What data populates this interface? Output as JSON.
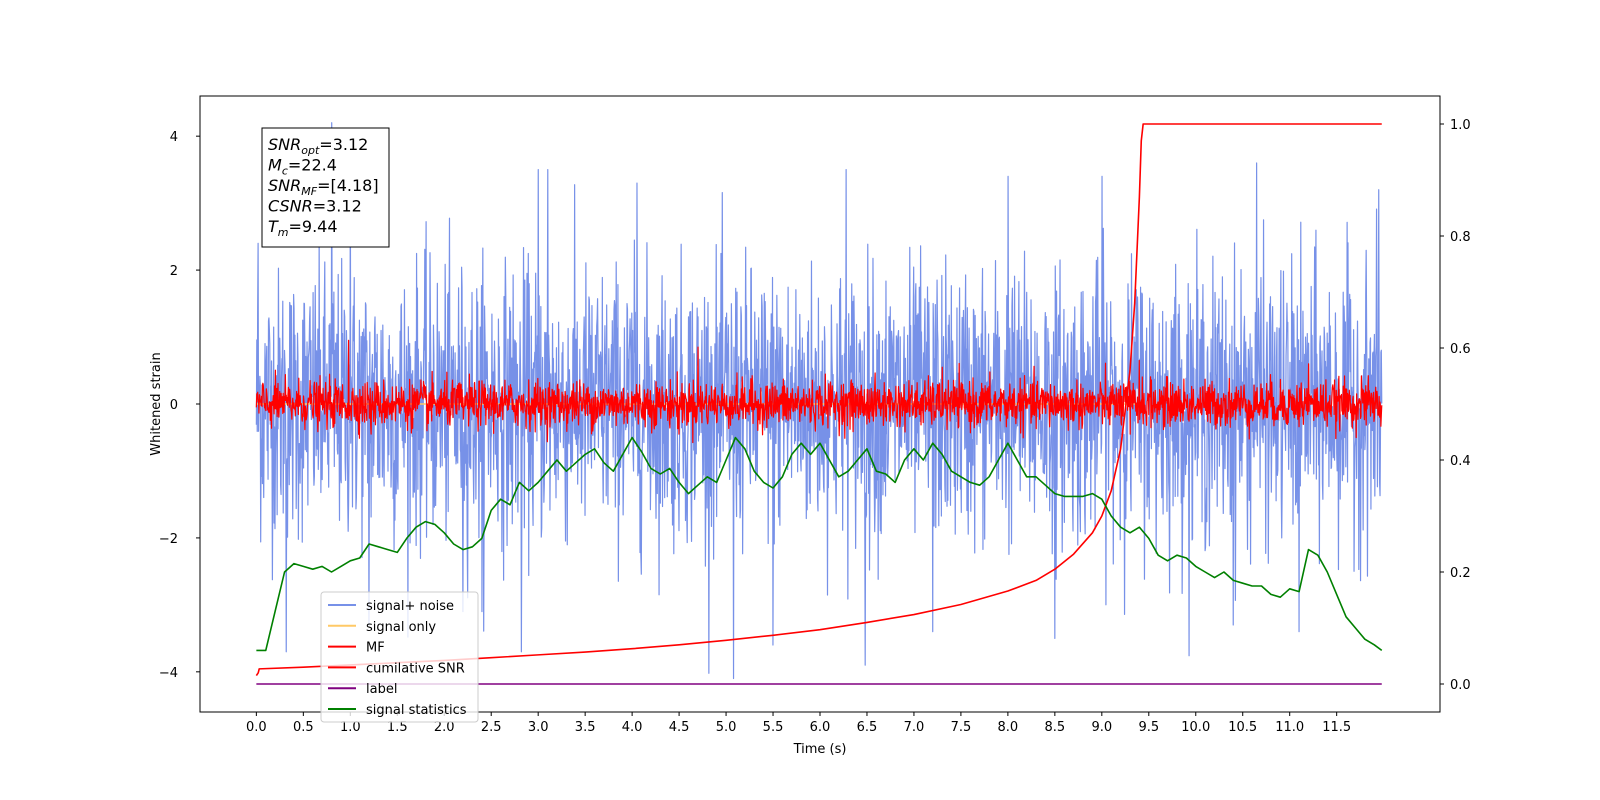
{
  "chart_data": {
    "type": "line",
    "xlabel": "Time (s)",
    "ylabel": "Whitened strain",
    "xlim": [
      -0.6,
      12.6
    ],
    "ylim": [
      -4.6,
      4.6
    ],
    "y2lim": [
      -0.05,
      1.05
    ],
    "x_ticks": [
      "0.0",
      "0.5",
      "1.0",
      "1.5",
      "2.0",
      "2.5",
      "3.0",
      "3.5",
      "4.0",
      "4.5",
      "5.0",
      "5.5",
      "6.0",
      "6.5",
      "7.0",
      "7.5",
      "8.0",
      "8.5",
      "9.0",
      "9.5",
      "10.0",
      "10.5",
      "11.0",
      "11.5"
    ],
    "x_tick_values": [
      0,
      0.5,
      1,
      1.5,
      2,
      2.5,
      3,
      3.5,
      4,
      4.5,
      5,
      5.5,
      6,
      6.5,
      7,
      7.5,
      8,
      8.5,
      9,
      9.5,
      10,
      10.5,
      11,
      11.5
    ],
    "y_ticks": [
      "−4",
      "−2",
      "0",
      "2",
      "4"
    ],
    "y_tick_values": [
      -4,
      -2,
      0,
      2,
      4
    ],
    "y2_ticks": [
      "0.0",
      "0.2",
      "0.4",
      "0.6",
      "0.8",
      "1.0"
    ],
    "y2_tick_values": [
      0,
      0.2,
      0.4,
      0.6,
      0.8,
      1.0
    ],
    "annotation": [
      {
        "sym": "SNR",
        "sub": "opt",
        "val": "=3.12"
      },
      {
        "sym": "M",
        "sub": "c",
        "val": "=22.4"
      },
      {
        "sym": "SNR",
        "sub": "MF",
        "val": "=[4.18]"
      },
      {
        "sym": "CSNR",
        "sub": "",
        "val": "=3.12"
      },
      {
        "sym": "T",
        "sub": "m",
        "val": "=9.44"
      }
    ],
    "series": [
      {
        "name": "signal+ noise",
        "color": "#7791e8",
        "axis": "left",
        "kind": "noise",
        "t_start": 0.0,
        "t_end": 11.98,
        "std": 1.0,
        "peaks": [
          [
            0.02,
            2.4
          ],
          [
            0.32,
            -3.7
          ],
          [
            0.8,
            4.2
          ],
          [
            1.0,
            3.4
          ],
          [
            1.2,
            -3.3
          ],
          [
            2.2,
            -3.1
          ],
          [
            2.4,
            -3.1
          ],
          [
            2.82,
            -3.7
          ],
          [
            3.0,
            3.5
          ],
          [
            3.1,
            3.5
          ],
          [
            4.05,
            3.3
          ],
          [
            5.08,
            -4.1
          ],
          [
            5.5,
            -3.6
          ],
          [
            6.28,
            3.5
          ],
          [
            6.48,
            -3.9
          ],
          [
            7.2,
            -3.4
          ],
          [
            8.0,
            3.4
          ],
          [
            8.5,
            -3.5
          ],
          [
            9.0,
            3.4
          ],
          [
            10.4,
            -3.3
          ],
          [
            10.65,
            3.6
          ],
          [
            11.1,
            -3.4
          ],
          [
            11.95,
            3.2
          ]
        ]
      },
      {
        "name": "signal only",
        "color": "#ffc966",
        "axis": "left",
        "kind": "flat",
        "t_start": 0.0,
        "t_end": 9.44,
        "value": 0
      },
      {
        "name": "MF",
        "color": "#ff0000",
        "axis": "left",
        "kind": "noise",
        "t_start": 0.0,
        "t_end": 11.98,
        "std": 0.17,
        "peaks": [
          [
            0.98,
            0.95
          ],
          [
            1.22,
            -0.45
          ],
          [
            4.7,
            0.85
          ],
          [
            4.5,
            -0.45
          ],
          [
            7.3,
            0.55
          ],
          [
            9.4,
            0.65
          ],
          [
            9.3,
            -0.45
          ],
          [
            11.2,
            0.6
          ]
        ]
      },
      {
        "name": "cumilative SNR",
        "color": "#ff0000",
        "axis": "right",
        "kind": "curve",
        "x": [
          0.0,
          0.02,
          0.03,
          0.5,
          1,
          1.5,
          2,
          2.5,
          3,
          3.5,
          4,
          4.5,
          5,
          5.5,
          6,
          6.5,
          7,
          7.5,
          8,
          8.3,
          8.5,
          8.7,
          8.9,
          9.0,
          9.1,
          9.2,
          9.3,
          9.35,
          9.4,
          9.42,
          9.44,
          9.5,
          10,
          11,
          11.98
        ],
        "y": [
          0.015,
          0.02,
          0.027,
          0.03,
          0.034,
          0.038,
          0.042,
          0.047,
          0.052,
          0.057,
          0.063,
          0.07,
          0.078,
          0.087,
          0.097,
          0.11,
          0.124,
          0.142,
          0.166,
          0.185,
          0.205,
          0.232,
          0.27,
          0.3,
          0.345,
          0.42,
          0.56,
          0.68,
          0.87,
          0.97,
          1.0,
          1.0,
          1.0,
          1.0,
          1.0
        ]
      },
      {
        "name": "label",
        "color": "#800080",
        "axis": "right",
        "kind": "curve",
        "x": [
          0.0,
          11.98
        ],
        "y": [
          0.0,
          0.0
        ]
      },
      {
        "name": "signal statistics",
        "color": "#008000",
        "axis": "right",
        "kind": "curve",
        "x": [
          0,
          0.1,
          0.2,
          0.3,
          0.4,
          0.5,
          0.6,
          0.7,
          0.8,
          0.9,
          1.0,
          1.1,
          1.2,
          1.3,
          1.4,
          1.5,
          1.6,
          1.7,
          1.8,
          1.9,
          2.0,
          2.1,
          2.2,
          2.3,
          2.4,
          2.5,
          2.6,
          2.7,
          2.8,
          2.9,
          3.0,
          3.1,
          3.2,
          3.3,
          3.4,
          3.5,
          3.6,
          3.7,
          3.8,
          3.9,
          4.0,
          4.1,
          4.2,
          4.3,
          4.4,
          4.5,
          4.6,
          4.7,
          4.8,
          4.9,
          5.0,
          5.1,
          5.2,
          5.3,
          5.4,
          5.5,
          5.6,
          5.7,
          5.8,
          5.9,
          6.0,
          6.1,
          6.2,
          6.3,
          6.4,
          6.5,
          6.6,
          6.7,
          6.8,
          6.9,
          7.0,
          7.1,
          7.2,
          7.3,
          7.4,
          7.5,
          7.6,
          7.7,
          7.8,
          7.9,
          8.0,
          8.1,
          8.2,
          8.3,
          8.4,
          8.5,
          8.6,
          8.7,
          8.8,
          8.9,
          9.0,
          9.1,
          9.2,
          9.3,
          9.4,
          9.5,
          9.6,
          9.7,
          9.8,
          9.9,
          10.0,
          10.1,
          10.2,
          10.3,
          10.4,
          10.5,
          10.6,
          10.7,
          10.8,
          10.9,
          11.0,
          11.1,
          11.2,
          11.3,
          11.4,
          11.5,
          11.6,
          11.7,
          11.8,
          11.9,
          11.98
        ],
        "y": [
          0.06,
          0.06,
          0.13,
          0.2,
          0.215,
          0.21,
          0.205,
          0.21,
          0.2,
          0.21,
          0.22,
          0.225,
          0.25,
          0.245,
          0.24,
          0.235,
          0.26,
          0.28,
          0.29,
          0.285,
          0.27,
          0.25,
          0.24,
          0.245,
          0.26,
          0.31,
          0.33,
          0.32,
          0.36,
          0.345,
          0.36,
          0.38,
          0.4,
          0.38,
          0.395,
          0.41,
          0.42,
          0.395,
          0.38,
          0.41,
          0.44,
          0.415,
          0.385,
          0.375,
          0.385,
          0.36,
          0.34,
          0.355,
          0.37,
          0.36,
          0.4,
          0.44,
          0.42,
          0.38,
          0.36,
          0.35,
          0.37,
          0.41,
          0.43,
          0.41,
          0.43,
          0.4,
          0.37,
          0.38,
          0.4,
          0.42,
          0.38,
          0.375,
          0.36,
          0.4,
          0.42,
          0.4,
          0.43,
          0.41,
          0.38,
          0.37,
          0.36,
          0.355,
          0.37,
          0.4,
          0.43,
          0.4,
          0.37,
          0.37,
          0.355,
          0.34,
          0.335,
          0.335,
          0.335,
          0.34,
          0.33,
          0.3,
          0.28,
          0.27,
          0.28,
          0.26,
          0.23,
          0.22,
          0.23,
          0.225,
          0.21,
          0.2,
          0.19,
          0.2,
          0.185,
          0.18,
          0.175,
          0.175,
          0.16,
          0.155,
          0.17,
          0.165,
          0.24,
          0.23,
          0.2,
          0.16,
          0.12,
          0.1,
          0.08,
          0.07,
          0.06
        ]
      }
    ],
    "legend_position": "lower-left"
  }
}
